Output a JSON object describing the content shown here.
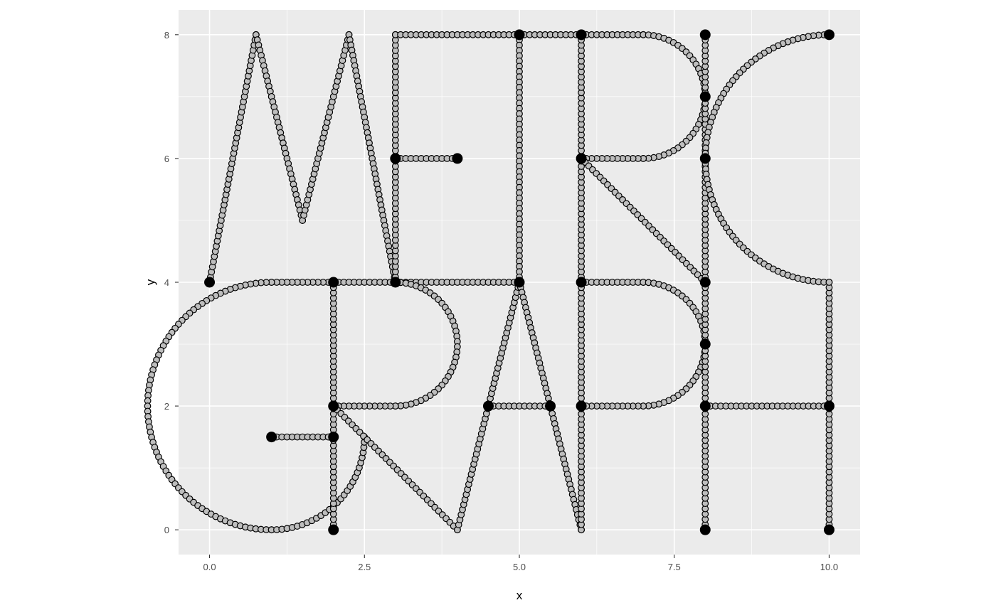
{
  "chart_data": {
    "type": "scatter",
    "title": "",
    "xlabel": "x",
    "ylabel": "y",
    "xlim": [
      -0.5,
      10.5
    ],
    "ylim": [
      -0.4,
      8.4
    ],
    "x_ticks": [
      0.0,
      2.5,
      5.0,
      7.5,
      10.0
    ],
    "x_tick_labels": [
      "0.0",
      "2.5",
      "5.0",
      "7.5",
      "10.0"
    ],
    "y_ticks": [
      0,
      2,
      4,
      6,
      8
    ],
    "y_tick_labels": [
      "0",
      "2",
      "4",
      "6",
      "8"
    ],
    "grid": true,
    "colors": {
      "panel": "#ebebeb",
      "grid": "#ffffff",
      "point_fill": "#bebebe",
      "point_stroke": "#000000",
      "node": "#000000"
    },
    "nodes": [
      [
        0,
        4
      ],
      [
        2,
        4
      ],
      [
        3,
        4
      ],
      [
        5,
        4
      ],
      [
        6,
        4
      ],
      [
        8,
        4
      ],
      [
        3,
        6
      ],
      [
        4,
        6
      ],
      [
        6,
        6
      ],
      [
        8,
        6
      ],
      [
        5,
        8
      ],
      [
        6,
        8
      ],
      [
        8,
        8
      ],
      [
        10,
        8
      ],
      [
        8,
        7
      ],
      [
        2,
        0
      ],
      [
        8,
        0
      ],
      [
        10,
        0
      ],
      [
        2,
        2
      ],
      [
        4.5,
        2
      ],
      [
        5.5,
        2
      ],
      [
        6,
        2
      ],
      [
        8,
        2
      ],
      [
        10,
        2
      ],
      [
        1,
        1.5
      ],
      [
        2,
        1.5
      ],
      [
        8,
        3
      ]
    ],
    "series": [
      {
        "letter": "M",
        "kind": "polyline",
        "points": [
          [
            0,
            4
          ],
          [
            0.75,
            8
          ],
          [
            1.5,
            5
          ],
          [
            2.25,
            8
          ],
          [
            3,
            4
          ]
        ]
      },
      {
        "letter": "E",
        "kind": "polyline",
        "points": [
          [
            3,
            4
          ],
          [
            5,
            4
          ]
        ]
      },
      {
        "letter": "E",
        "kind": "polyline",
        "points": [
          [
            3,
            4
          ],
          [
            3,
            8
          ]
        ]
      },
      {
        "letter": "E",
        "kind": "polyline",
        "points": [
          [
            3,
            8
          ],
          [
            5,
            8
          ]
        ]
      },
      {
        "letter": "E",
        "kind": "polyline",
        "points": [
          [
            3,
            6
          ],
          [
            4,
            6
          ]
        ]
      },
      {
        "letter": "T",
        "kind": "polyline",
        "points": [
          [
            5,
            8
          ],
          [
            6,
            8
          ]
        ]
      },
      {
        "letter": "T",
        "kind": "polyline",
        "points": [
          [
            5,
            8
          ],
          [
            5,
            4
          ]
        ]
      },
      {
        "letter": "R",
        "kind": "polyline",
        "points": [
          [
            6,
            4
          ],
          [
            6,
            8
          ]
        ]
      },
      {
        "letter": "R",
        "kind": "polyline",
        "points": [
          [
            6,
            8
          ],
          [
            7,
            8
          ]
        ]
      },
      {
        "letter": "R",
        "kind": "arc",
        "center": [
          7,
          7
        ],
        "radius": 1,
        "from_deg": 90,
        "to_deg": -90
      },
      {
        "letter": "R",
        "kind": "polyline",
        "points": [
          [
            7,
            6
          ],
          [
            6,
            6
          ]
        ]
      },
      {
        "letter": "R",
        "kind": "polyline",
        "points": [
          [
            6,
            6
          ],
          [
            8,
            4
          ]
        ]
      },
      {
        "letter": "O",
        "kind": "polyline",
        "points": [
          [
            8,
            4
          ],
          [
            8,
            8
          ]
        ]
      },
      {
        "letter": "O",
        "kind": "arc",
        "center": [
          10,
          6
        ],
        "radius": 2,
        "from_deg": 90,
        "to_deg": 180
      },
      {
        "letter": "O",
        "kind": "arc",
        "center": [
          10,
          6
        ],
        "radius": 2,
        "from_deg": 180,
        "to_deg": 270
      },
      {
        "letter": "G",
        "kind": "polyline",
        "points": [
          [
            2,
            4
          ],
          [
            1,
            4
          ]
        ]
      },
      {
        "letter": "G",
        "kind": "arc",
        "center": [
          1,
          2
        ],
        "radius": 2,
        "from_deg": 90,
        "to_deg": 270
      },
      {
        "letter": "G",
        "kind": "arc",
        "center": [
          1,
          1.5
        ],
        "radius": 1.5,
        "from_deg": 270,
        "to_deg": 360
      },
      {
        "letter": "G",
        "kind": "polyline",
        "points": [
          [
            1,
            1.5
          ],
          [
            2,
            1.5
          ]
        ]
      },
      {
        "letter": "G",
        "kind": "polyline",
        "points": [
          [
            2,
            0
          ],
          [
            2,
            4
          ]
        ]
      },
      {
        "letter": "R",
        "kind": "polyline",
        "points": [
          [
            2,
            4
          ],
          [
            3,
            4
          ]
        ]
      },
      {
        "letter": "R",
        "kind": "arc",
        "center": [
          3,
          3
        ],
        "radius": 1,
        "from_deg": 90,
        "to_deg": -90
      },
      {
        "letter": "R",
        "kind": "polyline",
        "points": [
          [
            3,
            2
          ],
          [
            2,
            2
          ]
        ]
      },
      {
        "letter": "R",
        "kind": "polyline",
        "points": [
          [
            2,
            2
          ],
          [
            4,
            0
          ]
        ]
      },
      {
        "letter": "A",
        "kind": "polyline",
        "points": [
          [
            4,
            0
          ],
          [
            5,
            4
          ],
          [
            6,
            0
          ]
        ]
      },
      {
        "letter": "A",
        "kind": "polyline",
        "points": [
          [
            4.5,
            2
          ],
          [
            5.5,
            2
          ]
        ]
      },
      {
        "letter": "P",
        "kind": "polyline",
        "points": [
          [
            6,
            0
          ],
          [
            6,
            4
          ]
        ]
      },
      {
        "letter": "P",
        "kind": "polyline",
        "points": [
          [
            6,
            4
          ],
          [
            7,
            4
          ]
        ]
      },
      {
        "letter": "P",
        "kind": "arc",
        "center": [
          7,
          3
        ],
        "radius": 1,
        "from_deg": 90,
        "to_deg": -90
      },
      {
        "letter": "P",
        "kind": "polyline",
        "points": [
          [
            7,
            2
          ],
          [
            6,
            2
          ]
        ]
      },
      {
        "letter": "H",
        "kind": "polyline",
        "points": [
          [
            8,
            0
          ],
          [
            8,
            4
          ]
        ]
      },
      {
        "letter": "H",
        "kind": "polyline",
        "points": [
          [
            10,
            0
          ],
          [
            10,
            4
          ]
        ]
      },
      {
        "letter": "H",
        "kind": "polyline",
        "points": [
          [
            8,
            2
          ],
          [
            10,
            2
          ]
        ]
      }
    ]
  }
}
